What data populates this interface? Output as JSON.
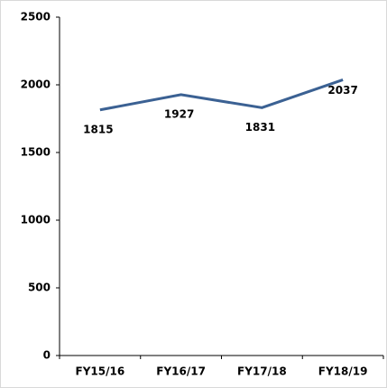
{
  "chart_data": {
    "type": "line",
    "categories": [
      "FY15/16",
      "FY16/17",
      "FY17/18",
      "FY18/19"
    ],
    "series": [
      {
        "name": null,
        "color": "#3b6193",
        "values": [
          1815,
          1927,
          1831,
          2037
        ]
      }
    ],
    "ylim": [
      0,
      2500
    ],
    "yticks": [
      0,
      500,
      1000,
      1500,
      2000,
      2500
    ],
    "data_labels": true
  }
}
